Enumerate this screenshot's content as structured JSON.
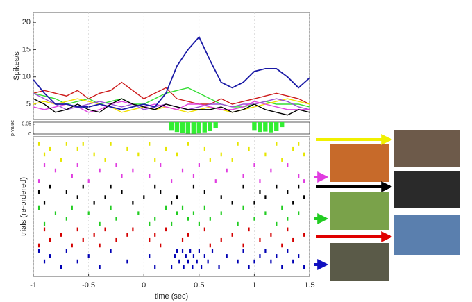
{
  "chart_data": [
    {
      "type": "line",
      "ylabel": "Spikes/s",
      "xlim": [
        -1,
        1.5
      ],
      "ylim": [
        2.2,
        21.8
      ],
      "yticks": [
        5,
        10,
        15,
        20
      ],
      "x": [
        -1,
        -0.9,
        -0.8,
        -0.7,
        -0.6,
        -0.5,
        -0.4,
        -0.3,
        -0.2,
        -0.1,
        0,
        0.1,
        0.2,
        0.3,
        0.4,
        0.5,
        0.6,
        0.7,
        0.8,
        0.9,
        1.0,
        1.1,
        1.2,
        1.3,
        1.4,
        1.5
      ],
      "series": [
        {
          "color": "#cc1a1a",
          "values": [
            7,
            7.5,
            7,
            6.5,
            7.5,
            6,
            7,
            7.5,
            9,
            7.5,
            6,
            7,
            8,
            6,
            5.5,
            5,
            5,
            6,
            5,
            5.5,
            6,
            6.5,
            7,
            6.5,
            6,
            5
          ]
        },
        {
          "color": "#33dd33",
          "values": [
            7,
            6.5,
            6,
            5,
            5.5,
            6,
            5,
            5.5,
            6,
            5,
            5,
            6,
            7,
            7.5,
            8,
            7,
            6,
            5,
            4.5,
            4.5,
            5,
            5.5,
            5,
            5,
            5,
            4.5
          ]
        },
        {
          "color": "#f0e000",
          "values": [
            5,
            5.5,
            5,
            5.5,
            6,
            5.5,
            5,
            4.5,
            3.5,
            4,
            4.5,
            4,
            4.5,
            4,
            3.5,
            4,
            4.5,
            4,
            3.5,
            4,
            4.5,
            5,
            5.5,
            6,
            5.5,
            5
          ]
        },
        {
          "color": "#9b4fd6",
          "values": [
            7,
            6,
            5,
            4,
            4.5,
            5,
            5.5,
            5,
            4.5,
            5,
            4,
            4.5,
            5,
            4.5,
            4,
            4.5,
            5,
            5,
            4.5,
            5,
            5,
            5.5,
            6,
            5.5,
            4.5,
            4
          ]
        },
        {
          "color": "#e040e0",
          "values": [
            4.5,
            4,
            4.5,
            5,
            4.5,
            3.5,
            4,
            5,
            5.5,
            5,
            4.5,
            5,
            4.5,
            4,
            5,
            5,
            4.5,
            4,
            4,
            4.5,
            5.5,
            5,
            4.5,
            4,
            4,
            4
          ]
        },
        {
          "color": "#000000",
          "values": [
            6,
            5,
            3.5,
            4,
            5,
            4,
            3.5,
            5,
            6,
            5,
            4.5,
            4,
            5,
            4.5,
            4,
            4,
            4,
            4.5,
            3.5,
            4,
            5,
            4,
            3.5,
            3,
            4,
            3.5
          ]
        },
        {
          "color": "#1a1aa6",
          "values": [
            9.5,
            7,
            5,
            5,
            4.5,
            4.5,
            5,
            4.5,
            4,
            4.5,
            5,
            4.5,
            7,
            12,
            15,
            17.3,
            13,
            9,
            8,
            9,
            11,
            11.5,
            11.5,
            10,
            8,
            9.8
          ]
        }
      ]
    },
    {
      "type": "bar",
      "ylabel": "p-value",
      "xlim": [
        -1,
        1.5
      ],
      "ylim": [
        0,
        0.06
      ],
      "yticks": [
        0,
        0.05
      ],
      "color": "#33ee33",
      "x": [
        0.25,
        0.3,
        0.35,
        0.4,
        0.45,
        0.5,
        0.55,
        0.6,
        0.65,
        1.0,
        1.05,
        1.1,
        1.15,
        1.2,
        1.25
      ],
      "values": [
        0.02,
        0.01,
        0.005,
        0.002,
        0.001,
        0.003,
        0.008,
        0.015,
        0.03,
        0.02,
        0.01,
        0.012,
        0.008,
        0.015,
        0.035
      ]
    },
    {
      "type": "raster",
      "ylabel": "trials (re-ordered)",
      "xlabel": "time (sec)",
      "xlim": [
        -1,
        1.5
      ],
      "xticks": [
        -1,
        -0.5,
        0,
        0.5,
        1,
        1.5
      ],
      "grid": true,
      "series": [
        {
          "color": "#e6e600",
          "trials": [
            [
              -0.95,
              -0.7,
              -0.55,
              -0.3,
              0.05,
              0.4,
              0.85,
              1.2,
              1.4
            ],
            [
              -0.85,
              -0.6,
              -0.15,
              0.2,
              0.55,
              0.95,
              1.35
            ],
            [
              -0.9,
              -0.45,
              -0.05,
              0.3,
              0.7,
              1.1,
              1.45
            ],
            [
              -0.75,
              -0.35,
              0.1,
              0.6,
              0.8,
              1.25
            ]
          ]
        },
        {
          "color": "#e03ce0",
          "trials": [
            [
              -0.9,
              -0.6,
              -0.25,
              0.15,
              0.5,
              1.0,
              1.3
            ],
            [
              -0.8,
              -0.4,
              -0.1,
              0.35,
              0.75,
              1.15
            ],
            [
              -0.65,
              -0.2,
              0.05,
              0.45,
              0.9,
              1.4
            ],
            [
              -0.95,
              -0.5,
              0.25,
              0.65,
              1.05,
              1.45
            ]
          ]
        },
        {
          "color": "#000000",
          "trials": [
            [
              -0.85,
              -0.55,
              -0.3,
              0.1,
              0.45,
              0.9,
              1.2,
              1.4
            ],
            [
              -0.95,
              -0.7,
              -0.2,
              0.15,
              0.55,
              1.05,
              1.3
            ],
            [
              -0.6,
              -0.35,
              0,
              0.3,
              0.7,
              1.1,
              1.45
            ],
            [
              -0.9,
              -0.45,
              -0.1,
              0.25,
              0.8,
              1.0,
              1.35
            ]
          ]
        },
        {
          "color": "#22cc22",
          "trials": [
            [
              -0.95,
              -0.65,
              -0.3,
              0.2,
              0.35,
              0.55,
              0.9,
              1.25
            ],
            [
              -0.8,
              -0.5,
              -0.05,
              0.3,
              0.45,
              0.7,
              1.1,
              1.4
            ],
            [
              -0.7,
              -0.25,
              0.1,
              0.4,
              0.6,
              1.0,
              1.3
            ],
            [
              -0.9,
              -0.4,
              0.05,
              0.25,
              0.5,
              0.85,
              1.2
            ]
          ]
        },
        {
          "color": "#d40000",
          "trials": [
            [
              -0.9,
              -0.6,
              -0.35,
              -0.1,
              0.2,
              0.55,
              0.95,
              1.3
            ],
            [
              -0.75,
              -0.45,
              -0.15,
              0.1,
              0.4,
              0.8,
              1.15,
              1.45
            ],
            [
              -0.85,
              -0.55,
              -0.25,
              0.05,
              0.35,
              0.7,
              1.05,
              1.35
            ],
            [
              -0.95,
              -0.65,
              -0.4,
              0.15,
              0.6,
              0.9,
              1.25
            ]
          ]
        },
        {
          "color": "#0000b4",
          "trials": [
            [
              -0.95,
              -0.7,
              -0.3,
              0.3,
              0.35,
              0.42,
              0.5,
              0.62,
              0.9,
              1.1,
              1.3
            ],
            [
              -0.85,
              -0.5,
              0.05,
              0.28,
              0.38,
              0.45,
              0.55,
              0.75,
              1.05,
              1.2,
              1.4
            ],
            [
              -0.9,
              -0.6,
              -0.15,
              0.32,
              0.4,
              0.48,
              0.58,
              0.85,
              1.0,
              1.15,
              1.35
            ],
            [
              -0.75,
              -0.4,
              0.1,
              0.25,
              0.36,
              0.44,
              0.52,
              0.68,
              0.95,
              1.25,
              1.45
            ]
          ]
        }
      ]
    }
  ]
}
